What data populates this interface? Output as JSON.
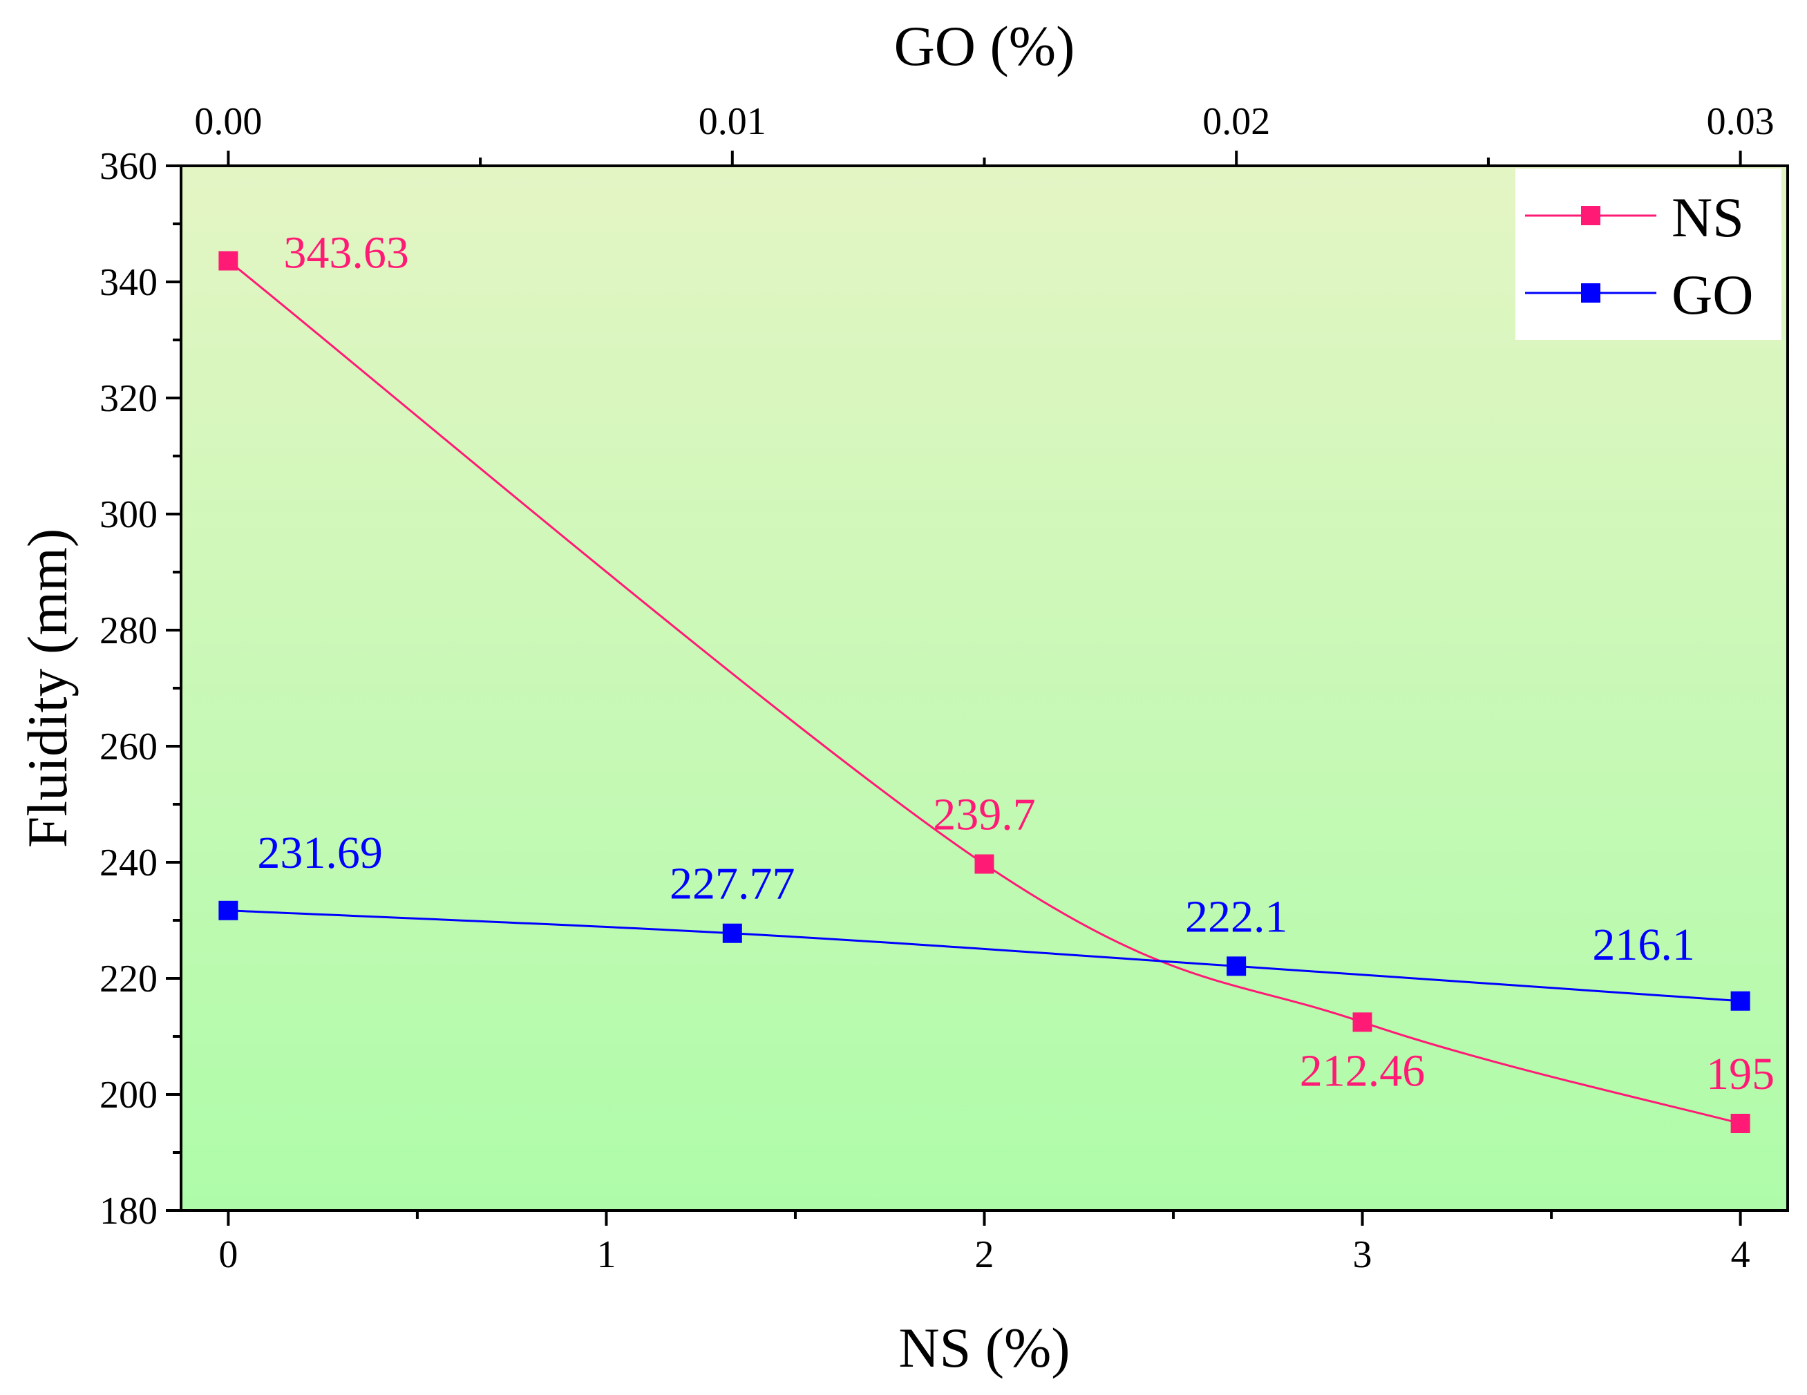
{
  "chart_data": {
    "type": "line",
    "ylabel": "Fluidity (mm)",
    "xlabel_bottom": "NS (%)",
    "xlabel_top": "GO (%)",
    "ylim": [
      180,
      360
    ],
    "yticks": [
      180,
      200,
      220,
      240,
      260,
      280,
      300,
      320,
      340,
      360
    ],
    "xlim_bottom": [
      -0.125,
      4.125
    ],
    "xticks_bottom": [
      0,
      1,
      2,
      3,
      4
    ],
    "xtick_labels_bottom": [
      "0",
      "1",
      "2",
      "3",
      "4"
    ],
    "xlim_top": [
      -0.0009375,
      0.0309375
    ],
    "xticks_top": [
      0,
      0.01,
      0.02,
      0.03
    ],
    "xtick_labels_top": [
      "0.00",
      "0.01",
      "0.02",
      "0.03"
    ],
    "grid": false,
    "legend_position": "top-right",
    "background": {
      "top": "#e4f5c4",
      "bottom": "#aefca9"
    },
    "series": [
      {
        "name": "NS",
        "axis": "bottom",
        "color": "#ff1a75",
        "x": [
          0,
          2,
          3,
          4
        ],
        "values": [
          343.63,
          239.7,
          212.46,
          195
        ],
        "labels": [
          "343.63",
          "239.7",
          "212.46",
          "195"
        ],
        "label_positions": [
          "right",
          "above",
          "below",
          "above"
        ]
      },
      {
        "name": "GO",
        "axis": "top",
        "color": "#0000ff",
        "x": [
          0,
          0.01,
          0.02,
          0.03
        ],
        "values": [
          231.69,
          227.77,
          222.1,
          216.1
        ],
        "labels": [
          "231.69",
          "227.77",
          "222.1",
          "216.1"
        ],
        "label_positions": [
          "above-right",
          "above",
          "above",
          "above-left"
        ]
      }
    ]
  }
}
